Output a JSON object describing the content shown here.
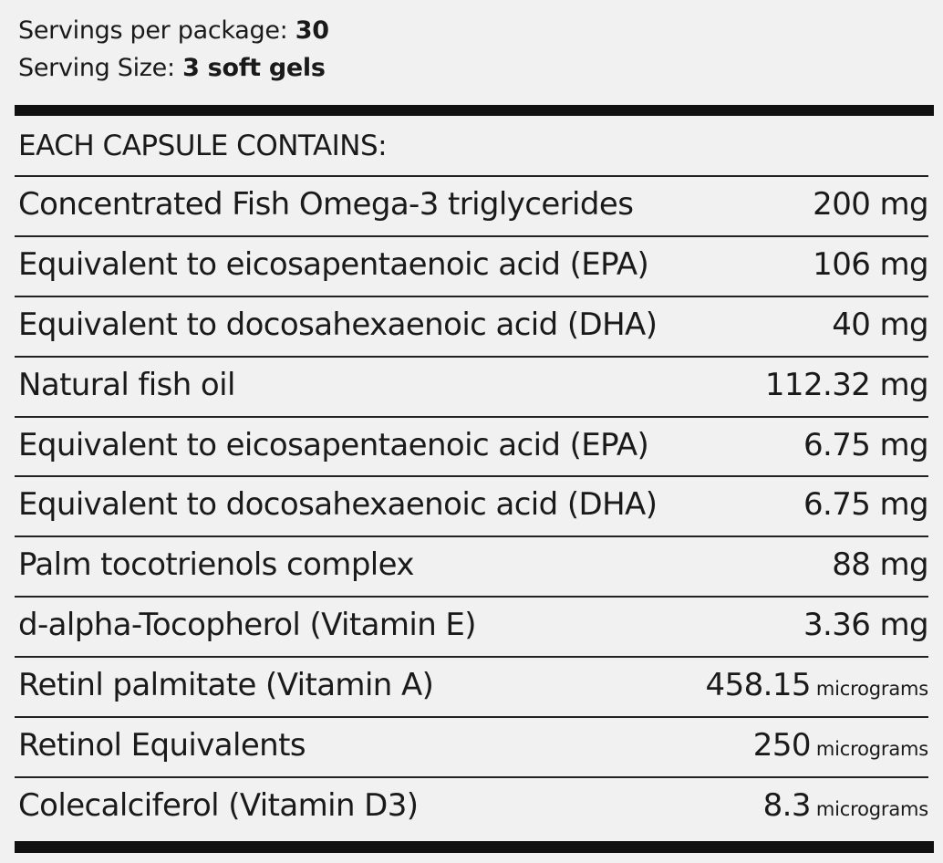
{
  "serving_info": {
    "servings_label": "Servings per package:",
    "servings_value": "30",
    "size_label": "Serving Size:",
    "size_value": "3 soft gels"
  },
  "header": "EACH CAPSULE CONTAINS:",
  "rows": [
    {
      "name": "Concentrated Fish Omega-3 triglycerides",
      "value": "200",
      "unit": "mg",
      "unit_style": "normal"
    },
    {
      "name": "Equivalent to eicosapentaenoic acid (EPA)",
      "value": "106",
      "unit": "mg",
      "unit_style": "normal"
    },
    {
      "name": "Equivalent to docosahexaenoic acid (DHA)",
      "value": "40",
      "unit": "mg",
      "unit_style": "normal"
    },
    {
      "name": "Natural fish oil",
      "value": "112.32",
      "unit": "mg",
      "unit_style": "normal"
    },
    {
      "name": "Equivalent to eicosapentaenoic acid (EPA)",
      "value": "6.75",
      "unit": "mg",
      "unit_style": "normal"
    },
    {
      "name": "Equivalent to docosahexaenoic acid (DHA)",
      "value": "6.75",
      "unit": "mg",
      "unit_style": "normal"
    },
    {
      "name": "Palm tocotrienols complex",
      "value": "88",
      "unit": "mg",
      "unit_style": "normal"
    },
    {
      "name": "d-alpha-Tocopherol (Vitamin E)",
      "value": "3.36",
      "unit": "mg",
      "unit_style": "normal"
    },
    {
      "name": "Retinl palmitate (Vitamin A)",
      "value": "458.15",
      "unit": "micrograms",
      "unit_style": "small"
    },
    {
      "name": "Retinol Equivalents",
      "value": "250",
      "unit": "micrograms",
      "unit_style": "small"
    },
    {
      "name": "Colecalciferol (Vitamin D3)",
      "value": "8.3",
      "unit": "micrograms",
      "unit_style": "small"
    }
  ]
}
